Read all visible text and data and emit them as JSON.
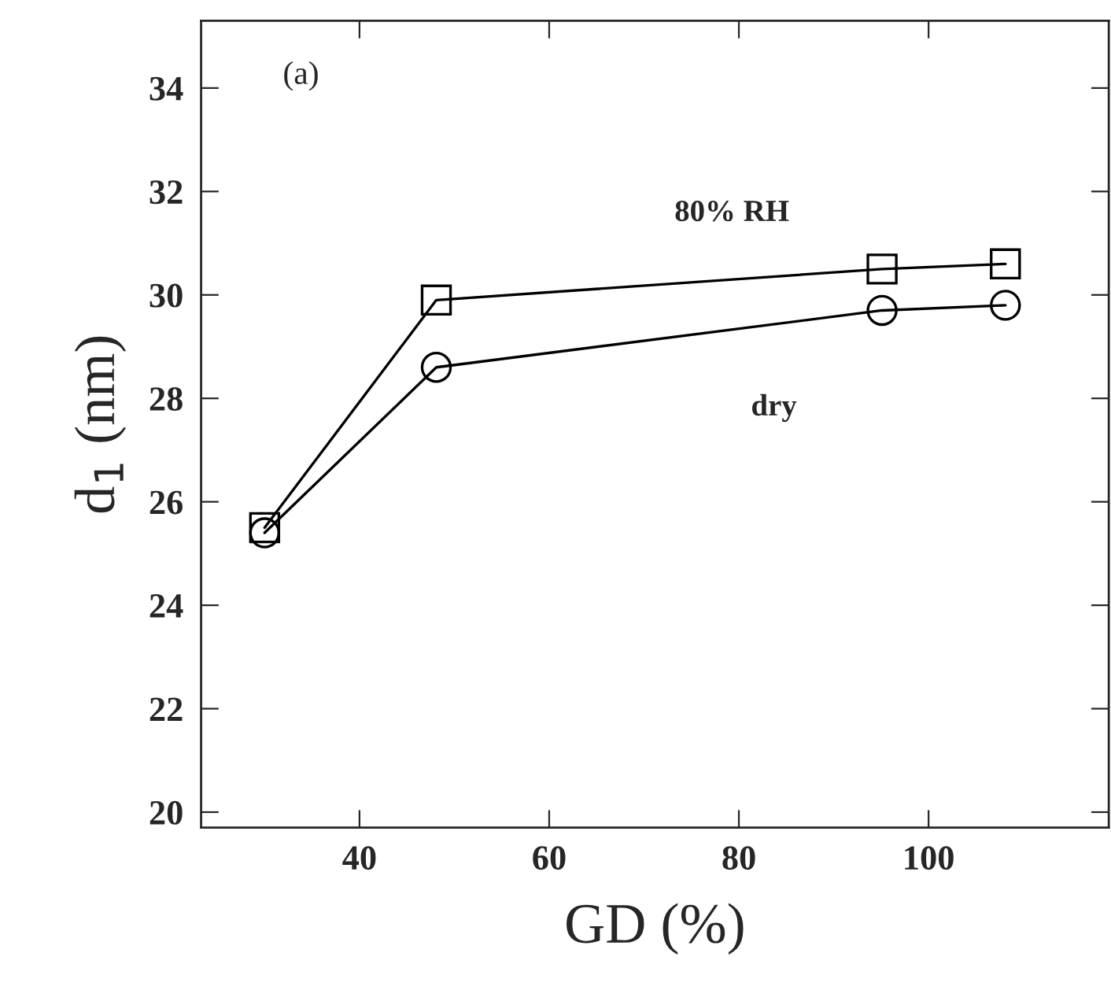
{
  "chart_data": {
    "type": "line",
    "xlabel": "GD (%)",
    "ylabel": "d$_{1}$ (nm)",
    "x": [
      30.0,
      48.1,
      95.1,
      108.1
    ],
    "series": [
      {
        "name": "80% RH",
        "color": "#000000",
        "marker": "square",
        "values": [
          25.5,
          29.9,
          30.5,
          30.6
        ]
      },
      {
        "name": "dry",
        "color": "#000000",
        "marker": "circle",
        "values": [
          25.4,
          28.6,
          29.7,
          29.8
        ]
      }
    ],
    "xlim": [
      23.3,
      119
    ],
    "ylim": [
      19.7,
      35.3
    ],
    "xticks": [
      40,
      60,
      80,
      100
    ],
    "yticks": [
      20,
      22,
      24,
      26,
      28,
      30,
      32,
      34
    ],
    "annotations": [
      "(a)"
    ],
    "grid": false,
    "legend": false,
    "line_style": "solid"
  }
}
